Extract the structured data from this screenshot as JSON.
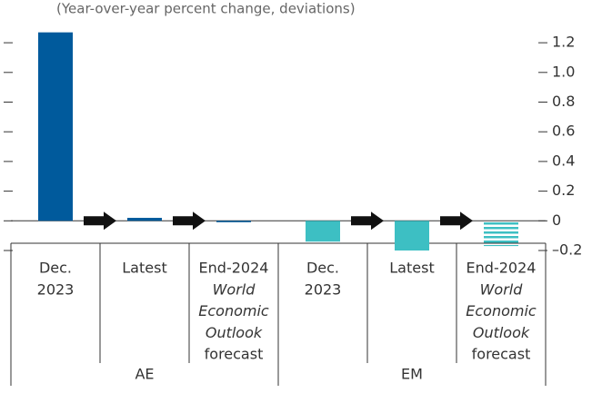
{
  "chart_data": {
    "type": "bar",
    "subtitle": "(Year-over-year percent change, deviations)",
    "categories": [
      [
        {
          "text": "Dec."
        },
        {
          "text": "2023"
        }
      ],
      [
        {
          "text": "Latest"
        }
      ],
      [
        {
          "text": "End-2024"
        },
        {
          "text": "World",
          "italic": true
        },
        {
          "text": "Economic",
          "italic": true
        },
        {
          "text": "Outlook",
          "italic": true
        },
        {
          "text": "forecast"
        }
      ],
      [
        {
          "text": "Dec."
        },
        {
          "text": "2023"
        }
      ],
      [
        {
          "text": "Latest"
        }
      ],
      [
        {
          "text": "End-2024"
        },
        {
          "text": "World",
          "italic": true
        },
        {
          "text": "Economic",
          "italic": true
        },
        {
          "text": "Outlook",
          "italic": true
        },
        {
          "text": "forecast"
        }
      ]
    ],
    "groups": [
      {
        "name": "AE",
        "span": 3
      },
      {
        "name": "EM",
        "span": 3
      }
    ],
    "values": [
      1.27,
      0.02,
      -0.005,
      -0.14,
      -0.2,
      -0.17
    ],
    "colors": [
      "#005a9c",
      "#005a9c",
      "#005a9c",
      "#3dbfc3",
      "#3dbfc3",
      "#3dbfc3"
    ],
    "hatched": [
      false,
      false,
      false,
      false,
      false,
      true
    ],
    "ylim": [
      -0.2,
      1.3
    ],
    "yticks": [
      {
        "value": -0.2,
        "label": "–0.2"
      },
      0,
      0.2,
      0.4,
      0.6,
      0.8,
      {
        "value": 1,
        "label": "1.0"
      },
      1.2
    ]
  }
}
